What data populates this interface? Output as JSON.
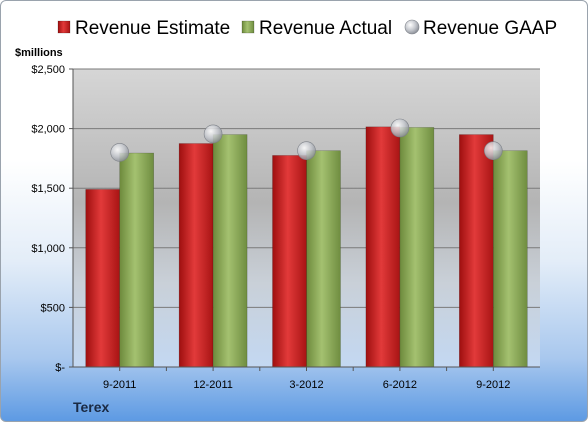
{
  "chart_data": {
    "type": "bar",
    "categories": [
      "9-2011",
      "12-2011",
      "3-2012",
      "6-2012",
      "9-2012"
    ],
    "series": [
      {
        "name": "Revenue Estimate",
        "kind": "bar",
        "color": "#cc2222",
        "values": [
          1490,
          1875,
          1775,
          2015,
          1950
        ]
      },
      {
        "name": "Revenue Actual",
        "kind": "bar",
        "color": "#8aaa55",
        "values": [
          1795,
          1950,
          1815,
          2010,
          1815
        ]
      },
      {
        "name": "Revenue GAAP",
        "kind": "marker",
        "color": "#b8bcc4",
        "values": [
          1800,
          1955,
          1815,
          2005,
          1815
        ]
      }
    ],
    "ylabel": "$millions",
    "ylim": [
      0,
      2500
    ],
    "yticks": [
      0,
      500,
      1000,
      1500,
      2000,
      2500
    ],
    "ytick_labels": [
      "$-",
      "$500",
      "$1,000",
      "$1,500",
      "$2,000",
      "$2,500"
    ],
    "grid": true,
    "legend": "top"
  },
  "footer": {
    "company": "Terex"
  }
}
